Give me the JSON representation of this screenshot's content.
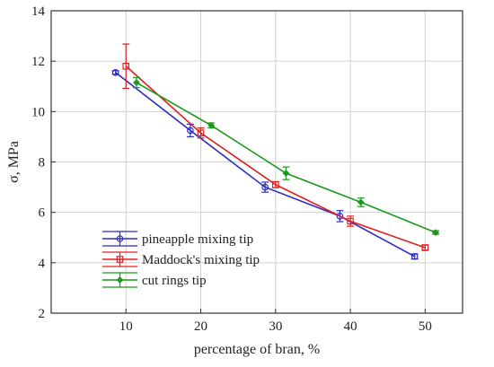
{
  "chart_data": {
    "type": "line",
    "title": "",
    "xlabel": "percentage of bran, %",
    "ylabel": "σ, MPa",
    "xlim": [
      0,
      55
    ],
    "ylim": [
      2,
      14
    ],
    "xticks": [
      10,
      20,
      30,
      40,
      50
    ],
    "yticks": [
      2,
      4,
      6,
      8,
      10,
      12,
      14
    ],
    "grid": true,
    "legend_position": "bottom-left",
    "series": [
      {
        "name": "pineapple mixing tip",
        "color": "#2b2bc8",
        "marker": "circle",
        "x": [
          8.6,
          18.6,
          28.6,
          38.6,
          48.6
        ],
        "y": [
          11.55,
          9.25,
          7.0,
          5.85,
          4.25
        ],
        "err": [
          0.07,
          0.25,
          0.2,
          0.22,
          0.1
        ]
      },
      {
        "name": "Maddock's mixing tip",
        "color": "#e02020",
        "marker": "square",
        "x": [
          10.0,
          20.0,
          30.0,
          40.0,
          50.0
        ],
        "y": [
          11.8,
          9.15,
          7.1,
          5.65,
          4.6
        ],
        "err": [
          0.88,
          0.2,
          0.12,
          0.2,
          0.1
        ]
      },
      {
        "name": "cut rings tip",
        "color": "#1a9a1a",
        "marker": "diamond",
        "x": [
          11.4,
          21.4,
          31.4,
          41.4,
          51.4
        ],
        "y": [
          11.15,
          9.45,
          7.55,
          6.4,
          5.2
        ],
        "err": [
          0.2,
          0.1,
          0.25,
          0.17,
          0.07
        ]
      }
    ]
  }
}
